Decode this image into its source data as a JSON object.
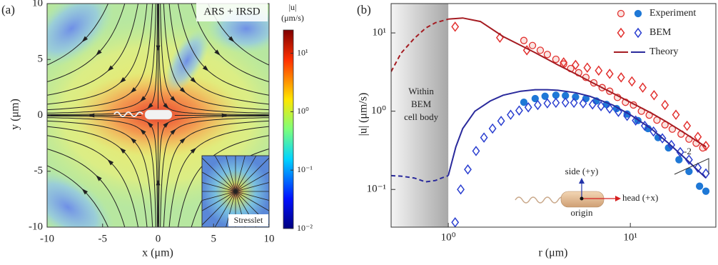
{
  "chart_data": [
    {
      "type": "field",
      "label": "(a)",
      "title": "ARS + IRSD",
      "xlabel": "x (μm)",
      "ylabel": "y (μm)",
      "xlim": [
        -10,
        10
      ],
      "ylim": [
        -10,
        10
      ],
      "xticks": [
        -10,
        -5,
        0,
        5,
        10
      ],
      "yticks": [
        -10,
        -5,
        0,
        5,
        10
      ],
      "colorbar": {
        "label": [
          "|u|",
          "(μm/s)"
        ],
        "lim": [
          0.01,
          25
        ],
        "log": true,
        "ticks": [
          {
            "value": 10,
            "label": "10¹"
          },
          {
            "value": 1,
            "label": "10⁰"
          },
          {
            "value": 0.1,
            "label": "10⁻¹"
          },
          {
            "value": 0.01,
            "label": "10⁻²"
          }
        ]
      },
      "inset_label": "Stresslet"
    },
    {
      "type": "loglog",
      "label": "(b)",
      "xlabel": "r (μm)",
      "ylabel": "|u| (μm/s)",
      "xlim": [
        0.485,
        29.5
      ],
      "ylim": [
        0.033,
        23.7
      ],
      "xticks": [
        {
          "value": 1,
          "label": "10⁰"
        },
        {
          "value": 10,
          "label": "10¹"
        }
      ],
      "yticks": [
        {
          "value": 0.1,
          "label": "10⁻¹"
        },
        {
          "value": 1,
          "label": "10⁰"
        },
        {
          "value": 10,
          "label": "10¹"
        }
      ],
      "shade": {
        "x": 1,
        "label": [
          "Within",
          "BEM",
          "cell body"
        ]
      },
      "legend": "upper right",
      "slope_label": "-2",
      "diagram": {
        "side": "side (+y)",
        "head": "head (+x)",
        "origin": "origin"
      },
      "series": [
        {
          "name": "Experiment",
          "marker": "circle",
          "filled": false,
          "color": "#e2312f",
          "x": [
            2.6,
            2.9,
            3.2,
            3.5,
            3.9,
            4.3,
            4.7,
            5.2,
            5.7,
            6.3,
            7,
            7.7,
            8.5,
            9.4,
            10.4,
            11.5,
            12.7,
            14,
            15.5,
            17,
            19,
            21,
            23,
            25
          ],
          "values": [
            8.0,
            6.9,
            6.0,
            5.3,
            4.6,
            4.0,
            3.5,
            3.1,
            2.7,
            2.3,
            2.0,
            1.8,
            1.5,
            1.3,
            1.2,
            1.0,
            0.89,
            0.77,
            0.67,
            0.59,
            0.51,
            0.44,
            0.39,
            0.34
          ]
        },
        {
          "name": "Experiment",
          "marker": "circle",
          "filled": true,
          "color": "#1f78d6",
          "x": [
            2.6,
            3,
            3.4,
            3.9,
            4.4,
            5,
            5.7,
            6.5,
            7.4,
            8.4,
            9.6,
            11,
            12.5,
            14.2,
            16.2,
            18.5,
            21,
            24,
            26
          ],
          "values": [
            1.3,
            1.45,
            1.55,
            1.6,
            1.58,
            1.52,
            1.45,
            1.35,
            1.22,
            1.08,
            0.92,
            0.76,
            0.6,
            0.46,
            0.34,
            0.24,
            0.17,
            0.11,
            0.095
          ]
        },
        {
          "name": "BEM",
          "marker": "diamond",
          "filled": false,
          "color": "#e2312f",
          "x": [
            1.09,
            1.92,
            2.7,
            4.3,
            5,
            5.8,
            6.7,
            7.7,
            8.9,
            10.2,
            11.7,
            13.5,
            15.5,
            17.8,
            20.5,
            23.5,
            26
          ],
          "values": [
            12,
            8.7,
            6.0,
            4.2,
            3.9,
            3.6,
            3.3,
            3.0,
            2.7,
            2.4,
            2.0,
            1.6,
            1.2,
            0.9,
            0.65,
            0.47,
            0.36
          ]
        },
        {
          "name": "BEM",
          "marker": "diamond",
          "filled": false,
          "color": "#2b3fd0",
          "x": [
            1.09,
            1.17,
            1.28,
            1.42,
            1.57,
            1.75,
            1.95,
            2.2,
            2.45,
            2.75,
            3.1,
            3.5,
            3.9,
            4.4,
            4.9,
            5.5,
            6.2,
            6.9,
            7.7,
            8.6,
            9.6,
            10.7,
            12,
            13.4,
            15,
            16.8,
            18.8,
            21,
            23.5,
            26
          ],
          "values": [
            0.038,
            0.1,
            0.18,
            0.31,
            0.46,
            0.6,
            0.75,
            0.9,
            1.02,
            1.12,
            1.2,
            1.26,
            1.28,
            1.29,
            1.28,
            1.26,
            1.22,
            1.16,
            1.08,
            0.98,
            0.87,
            0.76,
            0.65,
            0.55,
            0.45,
            0.37,
            0.3,
            0.24,
            0.19,
            0.16
          ]
        },
        {
          "name": "Theory",
          "marker": "line",
          "dashed": false,
          "color": "#a51c22",
          "x": [
            1,
            1.2,
            1.5,
            2,
            3,
            4,
            5,
            6,
            8,
            10,
            13,
            16,
            20,
            26
          ],
          "values": [
            15,
            15.5,
            14,
            9.0,
            5.6,
            3.9,
            3.0,
            2.4,
            1.7,
            1.3,
            0.95,
            0.72,
            0.52,
            0.35
          ]
        },
        {
          "name": "Theory",
          "marker": "line",
          "dashed": false,
          "color": "#2a2a9c",
          "x": [
            1,
            1.1,
            1.2,
            1.4,
            1.7,
            2,
            2.5,
            3,
            3.5,
            4,
            5,
            6,
            8,
            10,
            13,
            16,
            20,
            26
          ],
          "values": [
            0.15,
            0.35,
            0.6,
            1.0,
            1.35,
            1.6,
            1.8,
            1.88,
            1.88,
            1.85,
            1.72,
            1.55,
            1.2,
            0.9,
            0.6,
            0.4,
            0.25,
            0.14
          ]
        },
        {
          "marker": "line",
          "dashed": true,
          "color": "#a51c22",
          "x": [
            0.485,
            0.55,
            0.65,
            0.75,
            0.85,
            1
          ],
          "values": [
            3.2,
            5.5,
            8.5,
            11.5,
            13.5,
            15
          ]
        },
        {
          "marker": "line",
          "dashed": true,
          "color": "#2a2a9c",
          "x": [
            0.485,
            0.55,
            0.65,
            0.75,
            0.85,
            0.92,
            1
          ],
          "values": [
            0.15,
            0.148,
            0.14,
            0.125,
            0.13,
            0.14,
            0.15
          ]
        }
      ]
    }
  ]
}
